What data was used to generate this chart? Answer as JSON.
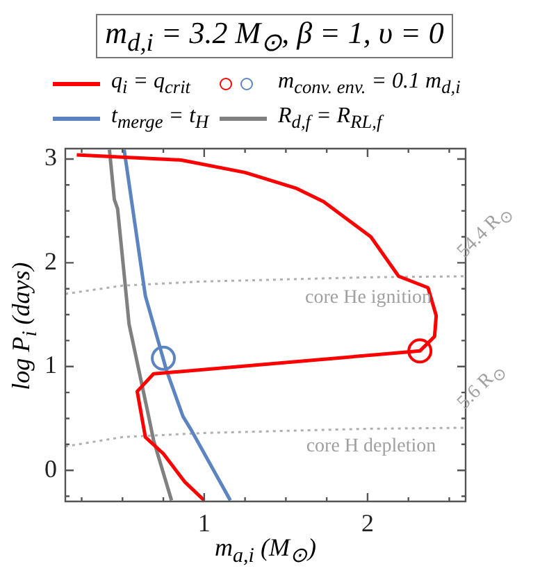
{
  "chart_data": {
    "type": "line",
    "title": "m$_{d,i}$ = 3.2 M$_{⊙}$, β = 1, υ = 0",
    "xlabel": "m$_{a,i}$ (M$_{⊙}$)",
    "ylabel": "log P$_{i}$ (days)",
    "xlim": [
      0.15,
      2.6
    ],
    "ylim": [
      -0.3,
      3.1
    ],
    "xticks": [
      {
        "value": 0.25,
        "label": null
      },
      {
        "value": 0.5,
        "label": null
      },
      {
        "value": 0.75,
        "label": null
      },
      1,
      {
        "value": 1.25,
        "label": null
      },
      {
        "value": 1.5,
        "label": null
      },
      {
        "value": 1.75,
        "label": null
      },
      2,
      {
        "value": 2.25,
        "label": null
      },
      {
        "value": 2.5,
        "label": null
      }
    ],
    "yticks": [
      {
        "value": -0.25,
        "label": null
      },
      0,
      {
        "value": 0.25,
        "label": null
      },
      {
        "value": 0.5,
        "label": null
      },
      {
        "value": 0.75,
        "label": null
      },
      1,
      {
        "value": 1.25,
        "label": null
      },
      {
        "value": 1.5,
        "label": null
      },
      {
        "value": 1.75,
        "label": null
      },
      2,
      {
        "value": 2.25,
        "label": null
      },
      {
        "value": 2.5,
        "label": null
      },
      {
        "value": 2.75,
        "label": null
      },
      3
    ],
    "legend": "top",
    "marker": "none",
    "series": [
      {
        "name": "q$_{i}$ = q$_{crit}$",
        "color": "#ff0000",
        "x": [
          0.22,
          0.86,
          1.25,
          1.56,
          1.73,
          2.02,
          2.19,
          2.37,
          2.42,
          2.41,
          2.32,
          0.69,
          0.59,
          0.64,
          0.75,
          0.88,
          1.0
        ],
        "values": [
          3.04,
          2.99,
          2.87,
          2.72,
          2.59,
          2.25,
          1.87,
          1.76,
          1.49,
          1.29,
          1.15,
          0.93,
          0.76,
          0.32,
          0.16,
          -0.11,
          -0.29
        ]
      },
      {
        "name": "m$_{conv. env.}$ = 0.1 m$_{d,i}$",
        "type": "scatter",
        "marker": "circle",
        "colors": [
          "#ff0000",
          "#5b84c0"
        ],
        "x": [
          2.32,
          0.75
        ],
        "values": [
          1.15,
          1.08
        ]
      },
      {
        "name": "t$_{merge}$ = t$_{H}$",
        "color": "#5b84c0",
        "x": [
          0.51,
          0.64,
          0.77,
          0.87,
          0.92,
          1.16
        ],
        "values": [
          3.09,
          1.68,
          0.96,
          0.52,
          0.39,
          -0.29
        ]
      },
      {
        "name": "R$_{d,f}$ = R$_{RL,f}$",
        "color": "#808080",
        "x": [
          0.42,
          0.45,
          0.47,
          0.51,
          0.54,
          0.66,
          0.69,
          0.8
        ],
        "values": [
          3.09,
          2.61,
          2.52,
          1.89,
          1.41,
          0.52,
          0.29,
          -0.29
        ]
      },
      {
        "color": "#b0b0b0",
        "line_style": "dotted",
        "x": [
          0.15,
          0.5,
          1.0,
          2.0,
          2.6
        ],
        "values": [
          1.7,
          1.78,
          1.82,
          1.86,
          1.87
        ]
      },
      {
        "color": "#b0b0b0",
        "line_style": "dotted",
        "x": [
          0.15,
          0.5,
          1.0,
          2.0,
          2.6
        ],
        "values": [
          0.23,
          0.32,
          0.36,
          0.4,
          0.41
        ]
      }
    ],
    "annotations": [
      "core He ignition",
      "core H depletion",
      {
        "text": "54.4 R$_{⊙}$",
        "x": 2.6,
        "y": 1.87
      },
      {
        "text": "5.6 R$_{⊙}$",
        "x": 2.6,
        "y": 0.41
      }
    ]
  }
}
